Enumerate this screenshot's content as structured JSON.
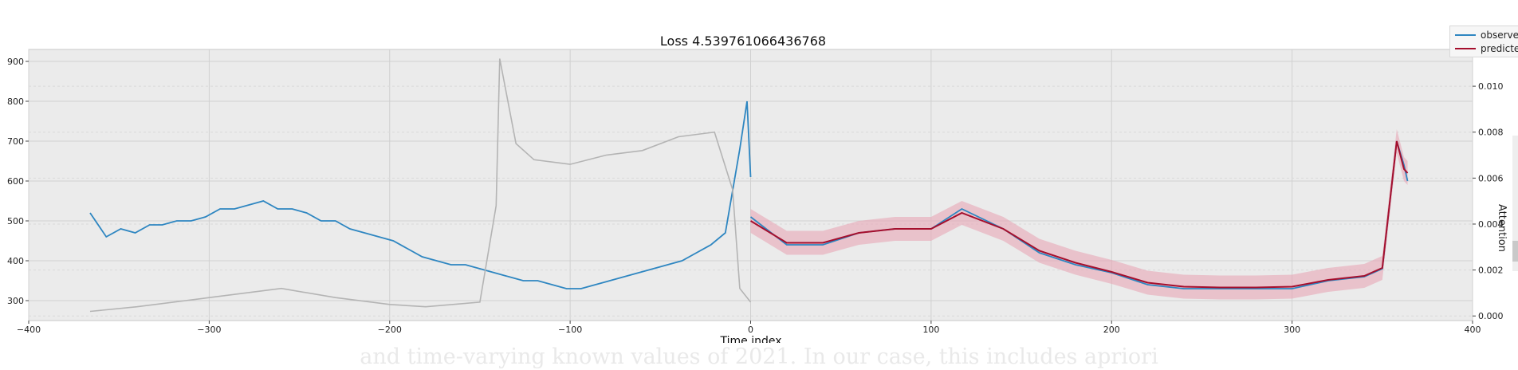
{
  "chart_data": {
    "type": "line",
    "title": "Loss 4.539761066436768",
    "xlabel": "Time index",
    "ylabel": "",
    "y2label": "Attention",
    "xlim": [
      -400,
      400
    ],
    "ylim": [
      250,
      930
    ],
    "y2lim": [
      -0.0002,
      0.0116
    ],
    "x_ticks": [
      -400,
      -300,
      -200,
      -100,
      0,
      100,
      200,
      300,
      400
    ],
    "x_tick_labels": [
      "−400",
      "−300",
      "−200",
      "−100",
      "0",
      "100",
      "200",
      "300",
      "400"
    ],
    "y_ticks": [
      300,
      400,
      500,
      600,
      700,
      800,
      900
    ],
    "y2_ticks": [
      0.0,
      0.002,
      0.004,
      0.006,
      0.008,
      0.01
    ],
    "y2_tick_labels": [
      "0.000",
      "0.002",
      "0.004",
      "0.006",
      "0.008",
      "0.010"
    ],
    "grid": true,
    "legend_position": "top-right",
    "colors": {
      "observed": "#2e86c1",
      "predicted": "#a50f2d",
      "band": "#e8a7b6",
      "attention": "#b4b4b4",
      "plot_bg": "#ebebeb",
      "grid": "#d0d0d0"
    },
    "series": [
      {
        "name": "observed",
        "segments": [
          {
            "x": [
              -366,
              -357,
              -349,
              -341,
              -333,
              -326,
              -318,
              -310,
              -302,
              -294,
              -286,
              -278,
              -270,
              -262,
              -254,
              -246,
              -238,
              -230,
              -222,
              -214,
              -206,
              -198,
              -190,
              -182,
              -174,
              -166,
              -158,
              -150,
              -142,
              -134,
              -126,
              -118,
              -110,
              -102,
              -94,
              -86,
              -78,
              -70,
              -62,
              -54,
              -46,
              -38,
              -30,
              -22,
              -14,
              -6,
              -2,
              0
            ],
            "y": [
              520,
              460,
              480,
              470,
              490,
              490,
              500,
              500,
              510,
              530,
              530,
              540,
              550,
              530,
              530,
              520,
              500,
              500,
              480,
              470,
              460,
              450,
              430,
              410,
              400,
              390,
              390,
              380,
              370,
              360,
              350,
              350,
              340,
              330,
              330,
              340,
              350,
              360,
              370,
              380,
              390,
              400,
              420,
              440,
              470,
              680,
              800,
              610
            ]
          },
          {
            "x": [
              0,
              20,
              40,
              60,
              80,
              100,
              117,
              140,
              160,
              180,
              200,
              220,
              240,
              260,
              280,
              300,
              320,
              340,
              350,
              358,
              362,
              364
            ],
            "y": [
              510,
              440,
              440,
              470,
              480,
              480,
              530,
              480,
              420,
              390,
              370,
              340,
              330,
              330,
              330,
              330,
              350,
              360,
              380,
              700,
              640,
              600
            ]
          }
        ]
      },
      {
        "name": "predicted",
        "x": [
          0,
          20,
          40,
          60,
          80,
          100,
          117,
          140,
          160,
          180,
          200,
          220,
          240,
          260,
          280,
          300,
          320,
          340,
          350,
          358,
          362,
          364
        ],
        "y": [
          500,
          445,
          445,
          470,
          480,
          480,
          520,
          480,
          425,
          395,
          372,
          345,
          335,
          333,
          333,
          335,
          352,
          362,
          382,
          700,
          630,
          620
        ]
      },
      {
        "name": "Attention",
        "axis": "right",
        "x": [
          -366,
          -340,
          -300,
          -260,
          -230,
          -200,
          -180,
          -150,
          -141,
          -139,
          -130,
          -120,
          -100,
          -80,
          -60,
          -40,
          -20,
          -10,
          -6,
          0
        ],
        "y": [
          0.0002,
          0.0004,
          0.0008,
          0.0012,
          0.0008,
          0.0005,
          0.0004,
          0.0006,
          0.0048,
          0.0112,
          0.0075,
          0.0068,
          0.0066,
          0.007,
          0.0072,
          0.0078,
          0.008,
          0.0055,
          0.0012,
          0.0006
        ]
      }
    ]
  },
  "legend": {
    "items": [
      {
        "label": "observed",
        "color": "#2e86c1"
      },
      {
        "label": "predicted",
        "color": "#a50f2d"
      }
    ]
  },
  "caption": "and time-varying known values of 2021. In our case, this includes apriori"
}
